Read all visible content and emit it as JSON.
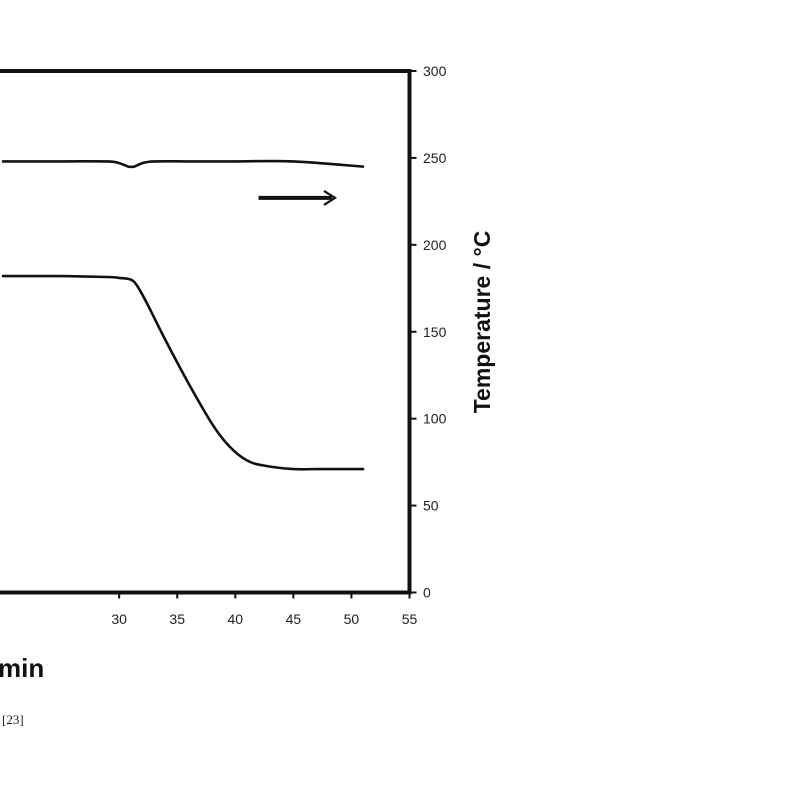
{
  "chart_data": {
    "type": "line",
    "xlabel": "min",
    "ylabel": "Temperature / °C",
    "xlim": [
      20,
      55
    ],
    "ylim": [
      0,
      300
    ],
    "x_ticks": [
      "30",
      "35",
      "40",
      "45",
      "50",
      "55"
    ],
    "y_ticks": [
      "0",
      "50",
      "100",
      "150",
      "200",
      "250",
      "300"
    ],
    "footnote": "[23]",
    "series": [
      {
        "x": [
          20,
          25,
          29,
          30,
          30.8,
          31.3,
          32,
          33,
          36,
          40,
          45,
          51
        ],
        "y": [
          248,
          248,
          248,
          247,
          245,
          245,
          247,
          248,
          248,
          248,
          248,
          245
        ]
      },
      {
        "x": [
          20,
          25,
          29,
          30,
          31,
          31.6,
          32.5,
          34,
          36,
          38,
          39.5,
          41,
          42.5,
          45,
          47,
          51
        ],
        "y": [
          182,
          182,
          181.5,
          181,
          180,
          176,
          165,
          145,
          120,
          97,
          84,
          76,
          73,
          71,
          71,
          71
        ]
      }
    ],
    "arrow": {
      "x_start": 42,
      "x_end": 48.5,
      "y": 227,
      "points_to": "right-axis"
    }
  }
}
